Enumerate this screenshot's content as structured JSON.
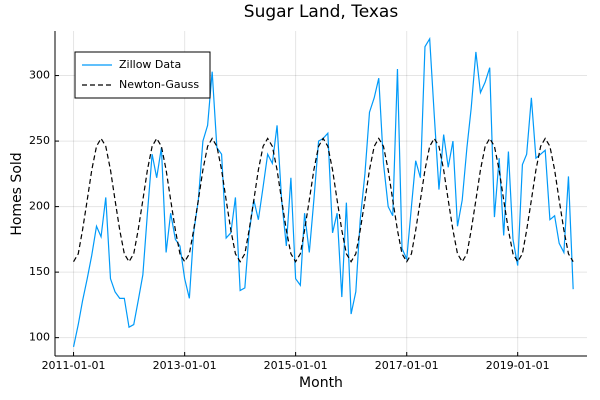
{
  "chart_data": {
    "type": "line",
    "title": "Sugar Land, Texas",
    "x_label": "Month",
    "y_label": "Homes Sold",
    "x": [
      "2011-01-01",
      "2011-02-01",
      "2011-03-01",
      "2011-04-01",
      "2011-05-01",
      "2011-06-01",
      "2011-07-01",
      "2011-08-01",
      "2011-09-01",
      "2011-10-01",
      "2011-11-01",
      "2011-12-01",
      "2012-01-01",
      "2012-02-01",
      "2012-03-01",
      "2012-04-01",
      "2012-05-01",
      "2012-06-01",
      "2012-07-01",
      "2012-08-01",
      "2012-09-01",
      "2012-10-01",
      "2012-11-01",
      "2012-12-01",
      "2013-01-01",
      "2013-02-01",
      "2013-03-01",
      "2013-04-01",
      "2013-05-01",
      "2013-06-01",
      "2013-07-01",
      "2013-08-01",
      "2013-09-01",
      "2013-10-01",
      "2013-11-01",
      "2013-12-01",
      "2014-01-01",
      "2014-02-01",
      "2014-03-01",
      "2014-04-01",
      "2014-05-01",
      "2014-06-01",
      "2014-07-01",
      "2014-08-01",
      "2014-09-01",
      "2014-10-01",
      "2014-11-01",
      "2014-12-01",
      "2015-01-01",
      "2015-02-01",
      "2015-03-01",
      "2015-04-01",
      "2015-05-01",
      "2015-06-01",
      "2015-07-01",
      "2015-08-01",
      "2015-09-01",
      "2015-10-01",
      "2015-11-01",
      "2015-12-01",
      "2016-01-01",
      "2016-02-01",
      "2016-03-01",
      "2016-04-01",
      "2016-05-01",
      "2016-06-01",
      "2016-07-01",
      "2016-08-01",
      "2016-09-01",
      "2016-10-01",
      "2016-11-01",
      "2016-12-01",
      "2017-01-01",
      "2017-02-01",
      "2017-03-01",
      "2017-04-01",
      "2017-05-01",
      "2017-06-01",
      "2017-07-01",
      "2017-08-01",
      "2017-09-01",
      "2017-10-01",
      "2017-11-01",
      "2017-12-01",
      "2018-01-01",
      "2018-02-01",
      "2018-03-01",
      "2018-04-01",
      "2018-05-01",
      "2018-06-01",
      "2018-07-01",
      "2018-08-01",
      "2018-09-01",
      "2018-10-01",
      "2018-11-01",
      "2018-12-01",
      "2019-01-01",
      "2019-02-01",
      "2019-03-01",
      "2019-04-01",
      "2019-05-01",
      "2019-06-01",
      "2019-07-01",
      "2019-08-01",
      "2019-09-01",
      "2019-10-01",
      "2019-11-01",
      "2019-12-01",
      "2020-01-01"
    ],
    "series": [
      {
        "name": "Zillow Data",
        "color": "#009af9",
        "style": "solid",
        "values": [
          93,
          110,
          128,
          145,
          163,
          185,
          177,
          207,
          145,
          135,
          130,
          130,
          108,
          110,
          128,
          148,
          195,
          240,
          222,
          245,
          165,
          195,
          175,
          170,
          145,
          130,
          180,
          205,
          250,
          262,
          303,
          245,
          240,
          176,
          180,
          207,
          136,
          138,
          180,
          205,
          190,
          215,
          240,
          233,
          262,
          205,
          170,
          222,
          145,
          140,
          195,
          165,
          205,
          250,
          252,
          256,
          180,
          195,
          131,
          203,
          118,
          135,
          190,
          225,
          272,
          283,
          298,
          233,
          200,
          193,
          305,
          168,
          160,
          200,
          235,
          222,
          322,
          328,
          270,
          213,
          255,
          230,
          250,
          185,
          205,
          245,
          275,
          318,
          287,
          295,
          306,
          192,
          237,
          178,
          242,
          175,
          155,
          232,
          240,
          283,
          237,
          240,
          243,
          190,
          193,
          172,
          165,
          223,
          137
        ]
      },
      {
        "name": "Newton-Gauss",
        "color": "#000000",
        "style": "dashed",
        "values": [
          158,
          164,
          182,
          205,
          228,
          246,
          252,
          246,
          228,
          205,
          182,
          164,
          158,
          164,
          182,
          205,
          228,
          246,
          252,
          246,
          228,
          205,
          182,
          164,
          158,
          164,
          182,
          205,
          228,
          246,
          252,
          246,
          228,
          205,
          182,
          164,
          158,
          164,
          182,
          205,
          228,
          246,
          252,
          246,
          228,
          205,
          182,
          164,
          158,
          164,
          182,
          205,
          228,
          246,
          252,
          246,
          228,
          205,
          182,
          164,
          158,
          164,
          182,
          205,
          228,
          246,
          252,
          246,
          228,
          205,
          182,
          164,
          158,
          164,
          182,
          205,
          228,
          246,
          252,
          246,
          228,
          205,
          182,
          164,
          158,
          164,
          182,
          205,
          228,
          246,
          252,
          246,
          228,
          205,
          182,
          164,
          158,
          164,
          182,
          205,
          228,
          246,
          252,
          246,
          228,
          205,
          182,
          164,
          158
        ]
      }
    ],
    "xlim": [
      "2010-09-01",
      "2020-04-01"
    ],
    "xticks": [
      "2011-01-01",
      "2013-01-01",
      "2015-01-01",
      "2017-01-01",
      "2019-01-01"
    ],
    "ylim": [
      86,
      334
    ],
    "yticks": [
      100,
      150,
      200,
      250,
      300
    ],
    "grid": true,
    "legend": "top-left"
  }
}
